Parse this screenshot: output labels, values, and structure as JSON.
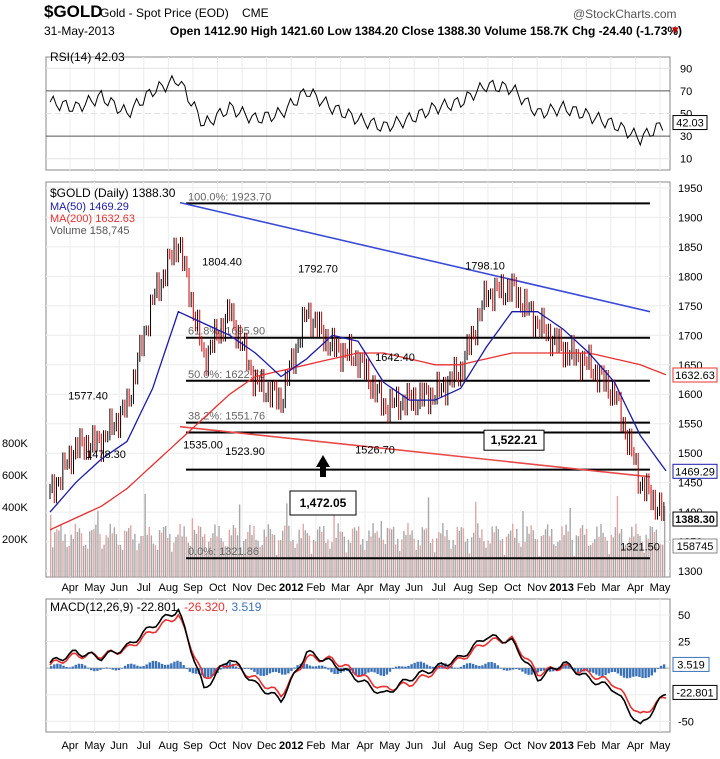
{
  "header": {
    "symbol": "$GOLD",
    "name": "Gold - Spot Price (EOD)",
    "exchange": "CME",
    "watermark": "@StockCharts.com",
    "date": "31-May-2013",
    "quote_line": "Open 1412.90  High 1421.60  Low 1384.20  Close 1388.30  Volume 158.7K  Chg -24.40 (-1.73%)",
    "chg_marker": "▾"
  },
  "rsi": {
    "label": "RSI(14) 42.03",
    "value": "42.03",
    "ticks": [
      "90",
      "70",
      "50",
      "30",
      "10"
    ]
  },
  "price": {
    "legend_title": "$GOLD (Daily) 1388.30",
    "ma50_label": "MA(50) 1469.29",
    "ma200_label": "MA(200) 1632.63",
    "volume_label": "Volume 158,745",
    "ticks": [
      "1950",
      "1900",
      "1850",
      "1800",
      "1750",
      "1700",
      "1650",
      "1600",
      "1550",
      "1500",
      "1450",
      "1400",
      "1350",
      "1300"
    ],
    "vol_ticks": [
      "800K",
      "600K",
      "400K",
      "200K"
    ],
    "right_labels": {
      "ma200": "1632.63",
      "ma50": "1469.29",
      "close": "1388.30",
      "volume": "158745"
    },
    "fib_labels": [
      "100.0%: 1923.70",
      "61.8%: 1695.90",
      "50.0%: 1622.78",
      "38.2%: 1551.76",
      "0.0%: 1321.86"
    ],
    "peak_labels": [
      "1577.40",
      "1478.30",
      "1804.40",
      "1792.70",
      "1642.40",
      "1798.10",
      "1523.90",
      "1526.70",
      "1535.00",
      "1321.50"
    ],
    "box_1522": "1,522.21",
    "box_1472": "1,472.05",
    "colors": {
      "up": "#000000",
      "down": "#cc0000",
      "ma50": "#1a1aa8",
      "ma200": "#e83030",
      "trend": "#3b4bd6",
      "lowtrend": "#e84a4a",
      "volume": "#a8a8a8"
    }
  },
  "axis": {
    "months": [
      "Apr",
      "May",
      "Jun",
      "Jul",
      "Aug",
      "Sep",
      "Oct",
      "Nov",
      "Dec",
      "2012",
      "Feb",
      "Mar",
      "Apr",
      "May",
      "Jun",
      "Jul",
      "Aug",
      "Sep",
      "Oct",
      "Nov",
      "2013",
      "Feb",
      "Mar",
      "Apr",
      "May"
    ]
  },
  "macd": {
    "label_prefix": "MACD(12,26,9)",
    "macd_value": "-22.801",
    "signal_value": "-26.320",
    "hist_value": "3.519",
    "ticks": [
      "50",
      "25",
      "0",
      "-25",
      "-50"
    ],
    "right_labels": {
      "hist": "3.519",
      "macd": "-22.801"
    }
  },
  "chart_data": {
    "type": "line",
    "title": "$GOLD Gold - Spot Price (EOD) CME",
    "subtitle": "31-May-2013",
    "x": [
      "Apr",
      "May",
      "Jun",
      "Jul",
      "Aug",
      "Sep",
      "Oct",
      "Nov",
      "Dec",
      "2012",
      "Feb",
      "Mar",
      "Apr",
      "May",
      "Jun",
      "Jul",
      "Aug",
      "Sep",
      "Oct",
      "Nov",
      "2013",
      "Feb",
      "Mar",
      "Apr",
      "May"
    ],
    "series": [
      {
        "name": "$GOLD (Daily) 1388.30",
        "values": [
          1430,
          1510,
          1520,
          1580,
          1760,
          1860,
          1660,
          1740,
          1620,
          1590,
          1740,
          1680,
          1660,
          1580,
          1590,
          1600,
          1640,
          1770,
          1780,
          1720,
          1675,
          1650,
          1600,
          1450,
          1390
        ]
      },
      {
        "name": "MA(50) 1469.29",
        "values": [
          1400,
          1450,
          1490,
          1520,
          1610,
          1740,
          1720,
          1700,
          1670,
          1630,
          1660,
          1700,
          1690,
          1620,
          1590,
          1590,
          1610,
          1680,
          1740,
          1740,
          1710,
          1670,
          1620,
          1530,
          1470
        ]
      },
      {
        "name": "MA(200) 1632.63",
        "values": [
          1370,
          1390,
          1410,
          1440,
          1480,
          1520,
          1560,
          1600,
          1630,
          1640,
          1650,
          1660,
          1670,
          1670,
          1660,
          1650,
          1650,
          1660,
          1670,
          1670,
          1670,
          1670,
          1660,
          1650,
          1633
        ]
      }
    ],
    "ylim": [
      1290,
      1960
    ],
    "fib_levels": [
      1923.7,
      1695.9,
      1622.78,
      1551.76,
      1321.86
    ],
    "annotations": [
      1577.4,
      1478.3,
      1804.4,
      1792.7,
      1642.4,
      1798.1,
      1523.9,
      1526.7,
      1535.0,
      1321.5,
      1522.21,
      1472.05
    ],
    "rsi": {
      "values": [
        60,
        55,
        65,
        50,
        70,
        80,
        40,
        55,
        45,
        50,
        70,
        55,
        45,
        38,
        45,
        55,
        60,
        75,
        72,
        50,
        55,
        48,
        40,
        28,
        42
      ],
      "ylim": [
        0,
        100
      ]
    },
    "macd": {
      "values": [
        5,
        15,
        10,
        20,
        40,
        55,
        -20,
        10,
        -15,
        -30,
        15,
        5,
        -10,
        -25,
        -10,
        0,
        10,
        30,
        25,
        -10,
        5,
        -10,
        -20,
        -55,
        -22.8
      ],
      "signal": [
        3,
        12,
        12,
        18,
        35,
        50,
        -10,
        5,
        -10,
        -25,
        10,
        8,
        -5,
        -20,
        -15,
        -3,
        8,
        25,
        27,
        -5,
        2,
        -5,
        -15,
        -45,
        -26.3
      ],
      "ylim": [
        -60,
        65
      ]
    }
  }
}
